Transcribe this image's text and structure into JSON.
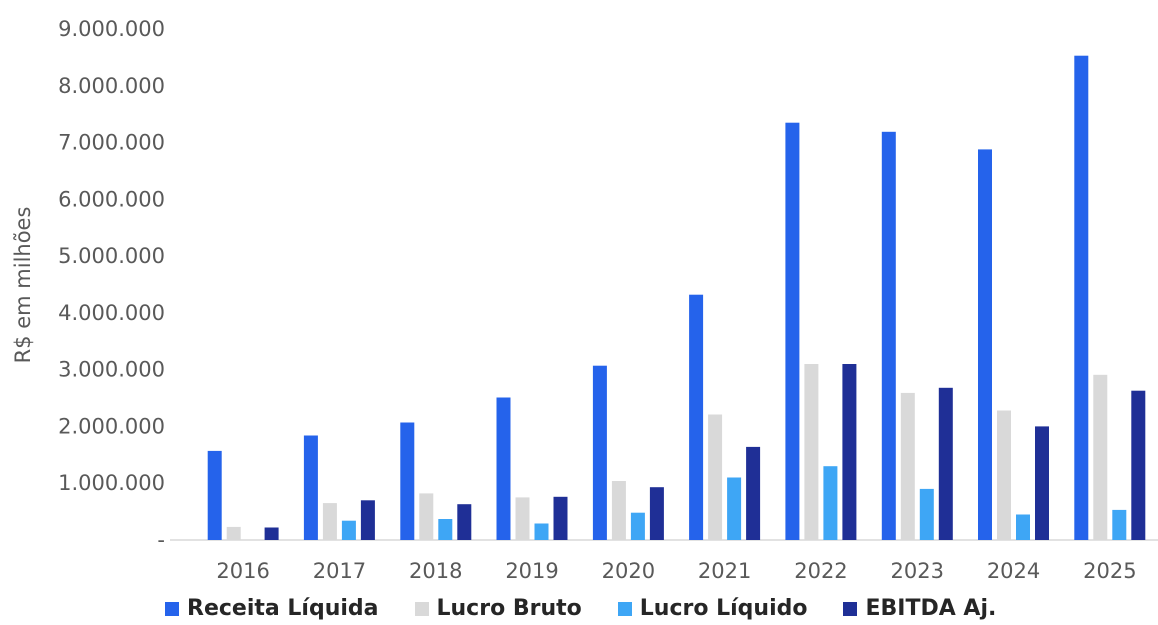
{
  "chart_data": {
    "type": "bar",
    "ylabel": "R$ em milhões",
    "xlabel": "",
    "title": "",
    "ylim": [
      0,
      9000000
    ],
    "yticks": [
      "-",
      "1.000.000",
      "2.000.000",
      "3.000.000",
      "4.000.000",
      "5.000.000",
      "6.000.000",
      "7.000.000",
      "8.000.000",
      "9.000.000"
    ],
    "grid": false,
    "legend_position": "bottom",
    "categories": [
      "2016",
      "2017",
      "2018",
      "2019",
      "2020",
      "2021",
      "2022",
      "2023",
      "2024",
      "2025"
    ],
    "series": [
      {
        "name": "Receita Líquida",
        "color": "#2563eb",
        "values": [
          1570000,
          1840000,
          2070000,
          2510000,
          3070000,
          4320000,
          7350000,
          7190000,
          6880000,
          8530000
        ]
      },
      {
        "name": "Lucro Bruto",
        "color": "#d9d9d9",
        "values": [
          230000,
          650000,
          820000,
          750000,
          1040000,
          2210000,
          3100000,
          2590000,
          2280000,
          2910000
        ]
      },
      {
        "name": "Lucro Líquido",
        "color": "#3ea6f5",
        "values": [
          0,
          340000,
          370000,
          290000,
          480000,
          1100000,
          1300000,
          900000,
          450000,
          530000
        ]
      },
      {
        "name": "EBITDA Aj.",
        "color": "#1f2f96",
        "values": [
          220000,
          700000,
          630000,
          760000,
          930000,
          1640000,
          3100000,
          2680000,
          2000000,
          2630000
        ]
      }
    ]
  }
}
